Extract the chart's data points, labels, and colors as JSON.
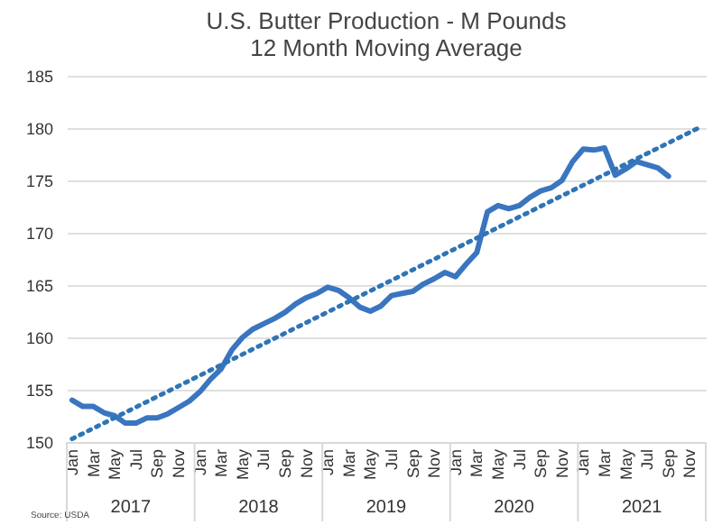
{
  "chart_data": {
    "type": "line",
    "title": "U.S. Butter Production - M Pounds",
    "subtitle": "12 Month Moving Average",
    "categories": [
      "Jan",
      null,
      "Mar",
      null,
      "May",
      null,
      "Jul",
      null,
      "Sep",
      null,
      "Nov",
      null,
      "Jan",
      null,
      "Mar",
      null,
      "May",
      null,
      "Jul",
      null,
      "Sep",
      null,
      "Nov",
      null,
      "Jan",
      null,
      "Mar",
      null,
      "May",
      null,
      "Jul",
      null,
      "Sep",
      null,
      "Nov",
      null,
      "Jan",
      null,
      "Mar",
      null,
      "May",
      null,
      "Jul",
      null,
      "Sep",
      null,
      "Nov",
      null,
      "Jan",
      null,
      "Mar",
      null,
      "May",
      null,
      "Jul",
      null,
      "Sep",
      null,
      "Nov",
      null
    ],
    "series": [
      {
        "color": "#3a75c0",
        "values": [
          154.0,
          153.4,
          153.4,
          152.8,
          152.5,
          151.8,
          151.8,
          152.3,
          152.3,
          152.7,
          153.3,
          153.9,
          154.8,
          156.0,
          157.0,
          158.8,
          160.0,
          160.8,
          161.3,
          161.8,
          162.4,
          163.2,
          163.8,
          164.2,
          164.8,
          164.5,
          163.8,
          162.9,
          162.5,
          163.0,
          164.0,
          164.2,
          164.4,
          165.1,
          165.6,
          166.2,
          165.8,
          167.0,
          168.1,
          172.0,
          172.6,
          172.3,
          172.6,
          173.4,
          174.0,
          174.3,
          175.0,
          176.8,
          178.0,
          177.9,
          178.1,
          175.5,
          176.1,
          176.8,
          176.5,
          176.2,
          175.4,
          null,
          null,
          null
        ]
      },
      {
        "type": "line",
        "color": "#2e75b6",
        "line_style": "dotted",
        "values": [
          150.3,
          null,
          null,
          null,
          null,
          null,
          null,
          null,
          null,
          null,
          null,
          null,
          null,
          null,
          null,
          null,
          null,
          null,
          null,
          null,
          null,
          null,
          null,
          null,
          null,
          null,
          null,
          null,
          null,
          null,
          null,
          null,
          null,
          null,
          null,
          null,
          null,
          null,
          null,
          null,
          null,
          null,
          null,
          null,
          null,
          null,
          null,
          null,
          null,
          null,
          null,
          null,
          null,
          null,
          null,
          null,
          null,
          null,
          null,
          180.1
        ]
      }
    ],
    "ylim": [
      150,
      185
    ],
    "yticks": [
      150,
      155,
      160,
      165,
      170,
      175,
      180,
      185
    ],
    "grid": "y",
    "annotations": [
      "2017",
      "2018",
      "2019",
      "2020",
      "2021",
      "Source: USDA"
    ]
  }
}
